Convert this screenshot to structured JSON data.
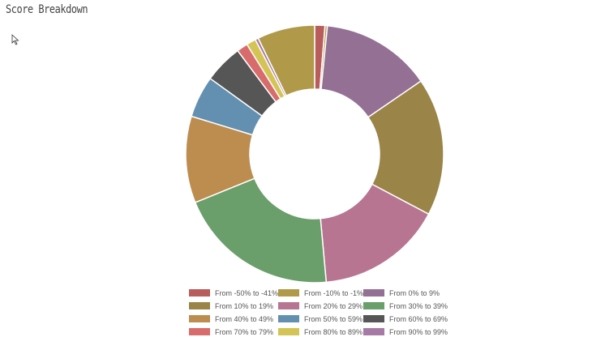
{
  "header": {
    "title": "Score Breakdown"
  },
  "chart_data": {
    "type": "pie",
    "donut": true,
    "title": "",
    "legend_position": "bottom",
    "categories": [
      "From -50% to -41%",
      "From -10% to -1%",
      "From 0% to 9%",
      "From 10% to 19%",
      "From 20% to 29%",
      "From 30% to 39%",
      "From 40% to 49%",
      "From 50% to 59%",
      "From 60% to 69%",
      "From 70% to 79%",
      "From 80% to 89%",
      "From 90% to 99%"
    ],
    "values": [
      1.3,
      0.3,
      14.0,
      17.5,
      16.0,
      20.5,
      11.0,
      5.3,
      4.9,
      1.4,
      1.2,
      0.4
    ],
    "tail_value": 7.3,
    "colors": [
      "#b85c5c",
      "#b09a4a",
      "#957095",
      "#9a8447",
      "#b87592",
      "#6a9e6a",
      "#bd8c4f",
      "#6390b0",
      "#565656",
      "#d86c6c",
      "#d4c456",
      "#a67aa5"
    ]
  }
}
